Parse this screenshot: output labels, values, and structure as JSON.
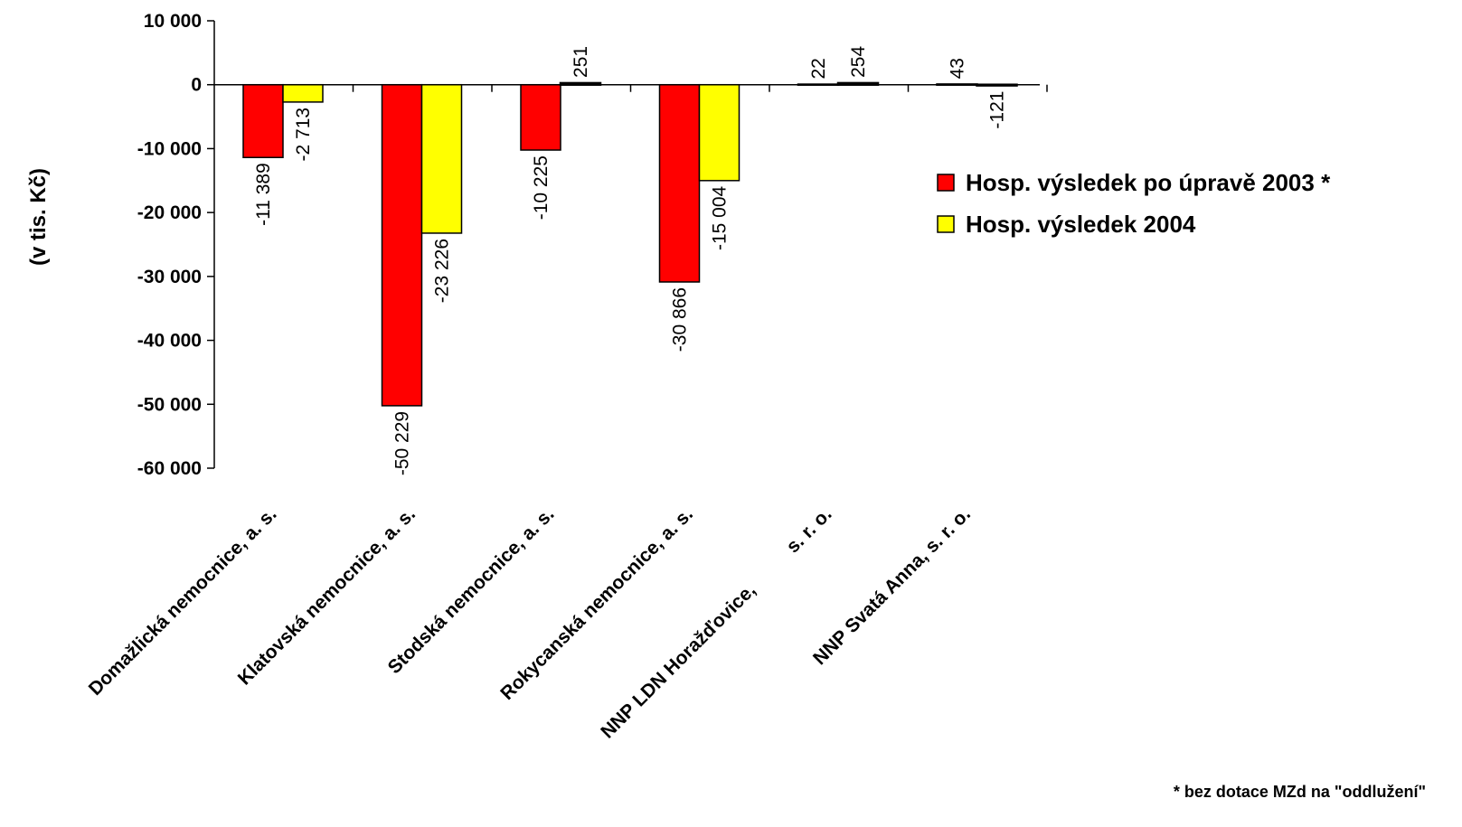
{
  "chart_data": {
    "type": "bar",
    "ylabel": "(v tis. Kč)",
    "ylim": [
      -60000,
      10000
    ],
    "ytick_step": 10000,
    "ytick_labels": [
      "10 000",
      "0",
      "-10 000",
      "-20 000",
      "-30 000",
      "-40 000",
      "-50 000",
      "-60 000"
    ],
    "grid": false,
    "legend_position": "right",
    "categories": [
      "Domažlická nemocnice, a. s.",
      "Klatovská nemocnice, a. s.",
      "Stodská nemocnice, a. s.",
      "Rokycanská nemocnice, a. s.",
      "NNP LDN Horažďovice,          s. r. o.",
      "NNP Svatá Anna, s. r. o."
    ],
    "series": [
      {
        "name": "Hosp. výsledek po úpravě 2003 *",
        "color": "#ff0000",
        "values": [
          -11389,
          -50229,
          -10225,
          -30866,
          22,
          43
        ],
        "labels": [
          "-11 389",
          "-50 229",
          "-10 225",
          "-30 866",
          "22",
          "43"
        ]
      },
      {
        "name": "Hosp. výsledek 2004",
        "color": "#ffff00",
        "values": [
          -2713,
          -23226,
          251,
          -15004,
          254,
          -121
        ],
        "labels": [
          "-2 713",
          "-23 226",
          "251",
          "-15 004",
          "254",
          "-121"
        ]
      }
    ],
    "footnote": "* bez dotace MZd na \"oddlužení\""
  }
}
